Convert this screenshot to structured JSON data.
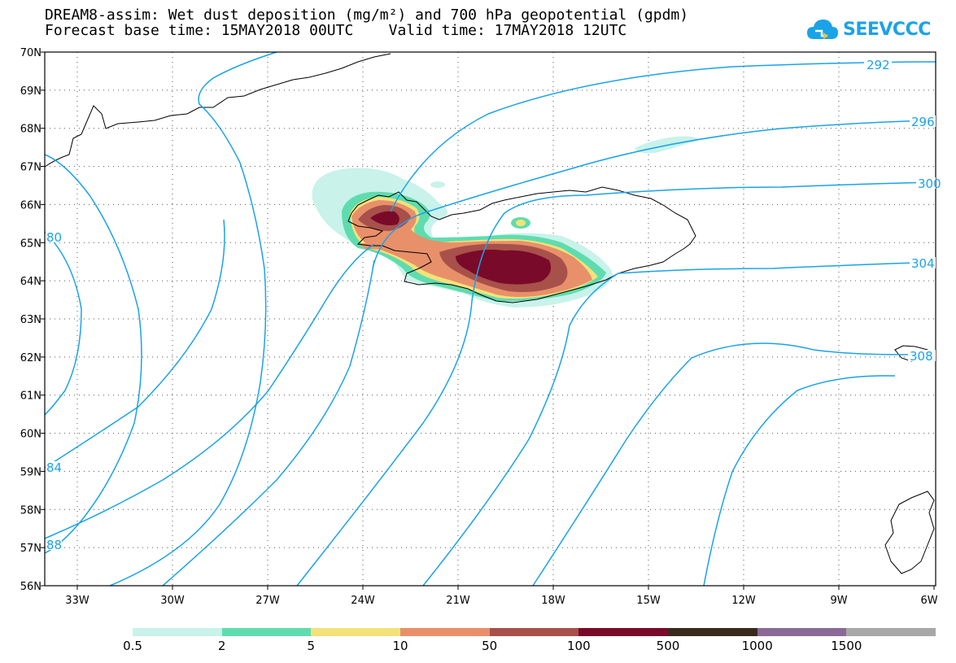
{
  "title_line1": "DREAM8-assim: Wet dust deposition (mg/m²) and 700 hPa geopotential (gpdm)",
  "title_line2": "Forecast base time: 15MAY2018 00UTC    Valid time: 17MAY2018 12UTC",
  "logo_text": "SEEVCCC",
  "lat_labels": [
    "70N",
    "69N",
    "68N",
    "67N",
    "66N",
    "65N",
    "64N",
    "63N",
    "62N",
    "61N",
    "60N",
    "59N",
    "58N",
    "57N",
    "56N"
  ],
  "lon_labels": [
    "33W",
    "30W",
    "27W",
    "24W",
    "21W",
    "18W",
    "15W",
    "12W",
    "9W",
    "6W"
  ],
  "contour_labels": [
    "292",
    "296",
    "300",
    "304",
    "308",
    "80",
    "84",
    "88"
  ],
  "legend": {
    "labels": [
      "0.5",
      "2",
      "5",
      "10",
      "50",
      "100",
      "500",
      "1000",
      "1500"
    ],
    "colors": [
      "#c8f2ea",
      "#5fdcae",
      "#f3e27a",
      "#e8906a",
      "#a8504a",
      "#7a0a2a",
      "#3a2a1e",
      "#8a6a98",
      "#a8a8a8"
    ]
  },
  "colors": {
    "contour": "#1aa3e8",
    "coast": "#000000",
    "grid": "#555555"
  }
}
